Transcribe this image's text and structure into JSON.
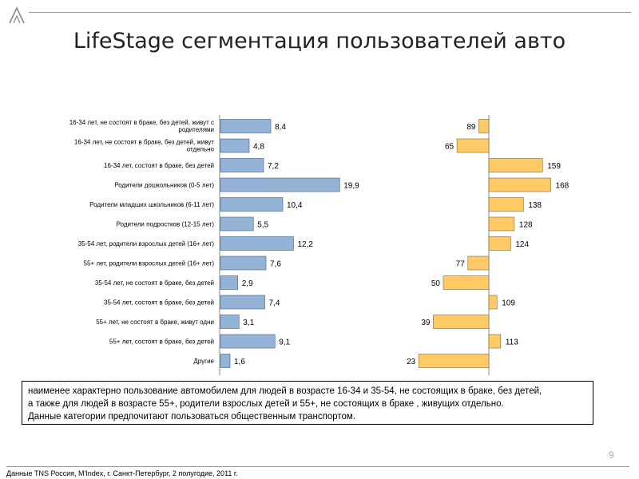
{
  "title": "LifeStage сегментация пользователей авто",
  "page_number": "9",
  "source": "Данные TNS Россия, M'Index, г. Санкт-Петербург, 2 полугодие, 2011 г.",
  "note": "наименее  характерно  пользование  автомобилем  для людей в возрасте  16-34  и 35-54,  не состоящих в браке,  без детей,\nа также  для людей  в возрасте 55+, родители взрослых детей и 55+, не  состоящих в браке  , живущих  отдельно.\nДанные категории предпочитают  пользоваться общественным транспортом.",
  "colors": {
    "left_bar": "#95b3d7",
    "left_bar_border": "#3a5f8f",
    "right_bar": "#ffc966",
    "right_bar_border": "#7a6a3a"
  },
  "chart_data": [
    {
      "type": "bar",
      "orientation": "horizontal",
      "categories": [
        "16-34 лет, не состоят в браке, без детей, живут с родителями",
        "16-34 лет, не состоят в браке, без детей, живут отдельно",
        "16-34 лет, состоят в браке, без детей",
        "Родители дошкольников (0-5 лет)",
        "Родители младших школьников (6-11 лет)",
        "Родители подростков (12-15 лет)",
        "35-54 лет, родители взрослых детей (16+ лет)",
        "55+ лет, родители взрослых детей (16+ лет)",
        "35-54 лет, не состоят в браке, без детей",
        "35-54 лет, состоят в браке, без детей",
        "55+ лет, не состоят в браке, живут одни",
        "55+ лет, состоят в браке, без детей",
        "Другие"
      ],
      "values": [
        8.4,
        4.8,
        7.2,
        19.9,
        10.4,
        5.5,
        12.2,
        7.6,
        2.9,
        7.4,
        3.1,
        9.1,
        1.6
      ],
      "value_labels": [
        "8,4",
        "4,8",
        "7,2",
        "19,9",
        "10,4",
        "5,5",
        "12,2",
        "7,6",
        "2,9",
        "7,4",
        "3,1",
        "9,1",
        "1,6"
      ],
      "xlim": [
        0,
        20
      ],
      "grid": false
    },
    {
      "type": "bar",
      "orientation": "horizontal",
      "baseline": 100,
      "values": [
        89,
        65,
        159,
        168,
        138,
        128,
        124,
        77,
        50,
        109,
        39,
        113,
        23
      ],
      "value_labels": [
        "89",
        "65",
        "159",
        "168",
        "138",
        "128",
        "124",
        "77",
        "50",
        "109",
        "39",
        "113",
        "23"
      ],
      "xlim": [
        23,
        168
      ],
      "grid": false
    }
  ]
}
